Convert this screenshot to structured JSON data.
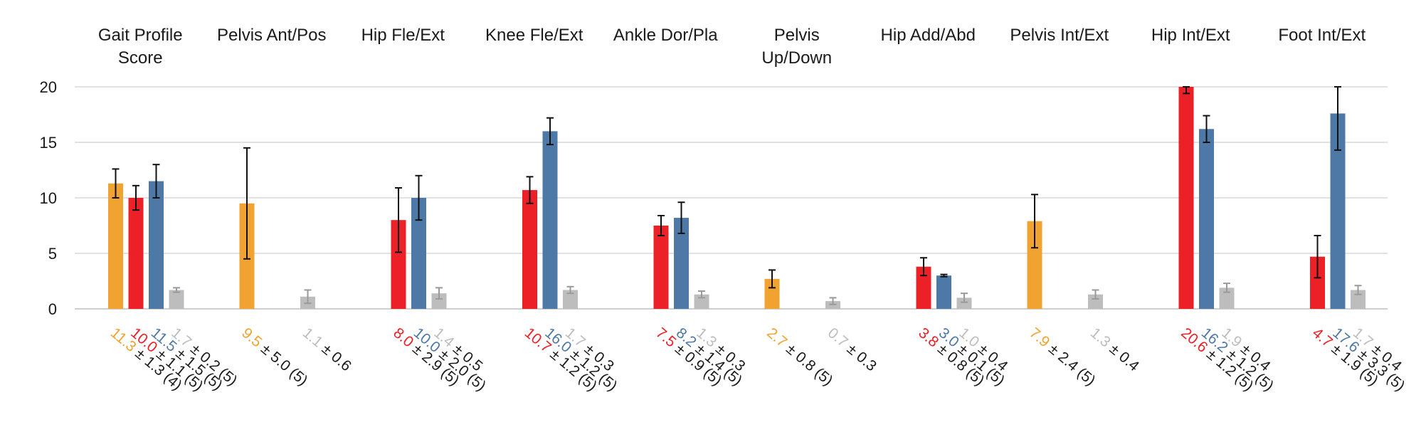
{
  "chart_data": {
    "type": "bar",
    "categories": [
      [
        "Gait Profile",
        "Score"
      ],
      [
        "Pelvis Ant/Pos"
      ],
      [
        "Hip Fle/Ext"
      ],
      [
        "Knee Fle/Ext"
      ],
      [
        "Ankle Dor/Pla"
      ],
      [
        "Pelvis",
        "Up/Down"
      ],
      [
        "Hip Add/Abd"
      ],
      [
        "Pelvis Int/Ext"
      ],
      [
        "Hip Int/Ext"
      ],
      [
        "Foot Int/Ext"
      ]
    ],
    "ylim": [
      0,
      20
    ],
    "yticks": [
      "0",
      "5",
      "10",
      "15",
      "20"
    ],
    "grid": true,
    "series": [
      {
        "color": "#F0A330",
        "values": [
          11.3,
          9.5,
          null,
          null,
          null,
          2.7,
          null,
          7.9,
          null,
          null
        ],
        "errors": [
          1.3,
          5.0,
          null,
          null,
          null,
          0.8,
          null,
          2.4,
          null,
          null
        ],
        "labels": [
          {
            "value": "11.3",
            "error": "± 1.3 (4)"
          },
          {
            "value": "9.5",
            "error": "± 5.0 (5)"
          },
          null,
          null,
          null,
          {
            "value": "2.7",
            "error": "± 0.8 (5)"
          },
          null,
          {
            "value": "7.9",
            "error": "± 2.4 (5)"
          },
          null,
          null
        ]
      },
      {
        "color": "#EC2027",
        "values": [
          10.0,
          null,
          8.0,
          10.7,
          7.5,
          null,
          3.8,
          null,
          20.6,
          4.7
        ],
        "errors": [
          1.1,
          null,
          2.9,
          1.2,
          0.9,
          null,
          0.8,
          null,
          1.2,
          1.9
        ],
        "labels": [
          {
            "value": "10.0",
            "error": "± 1.1 (5)"
          },
          null,
          {
            "value": "8.0",
            "error": "± 2.9 (5)"
          },
          {
            "value": "10.7",
            "error": "± 1.2 (5)"
          },
          {
            "value": "7.5",
            "error": "± 0.9 (5)"
          },
          null,
          {
            "value": "3.8",
            "error": "± 0.8 (5)"
          },
          null,
          {
            "value": "20.6",
            "error": "± 1.2 (5)"
          },
          {
            "value": "4.7",
            "error": "± 1.9 (5)"
          }
        ]
      },
      {
        "color": "#4E78A6",
        "values": [
          11.5,
          null,
          10.0,
          16.0,
          8.2,
          null,
          3.0,
          null,
          16.2,
          17.6
        ],
        "errors": [
          1.5,
          null,
          2.0,
          1.2,
          1.4,
          null,
          0.1,
          null,
          1.2,
          3.3
        ],
        "labels": [
          {
            "value": "11.5",
            "error": "± 1.5 (5)"
          },
          null,
          {
            "value": "10.0",
            "error": "± 2.0 (5)"
          },
          {
            "value": "16.0",
            "error": "± 1.2 (5)"
          },
          {
            "value": "8.2",
            "error": "± 1.4 (5)"
          },
          null,
          {
            "value": "3.0",
            "error": "± 0.1 (5)"
          },
          null,
          {
            "value": "16.2",
            "error": "± 1.2 (5)"
          },
          {
            "value": "17.6",
            "error": "± 3.3 (5)"
          }
        ]
      },
      {
        "color": "#BDBDBD",
        "values": [
          1.7,
          1.1,
          1.4,
          1.7,
          1.3,
          0.7,
          1.0,
          1.3,
          1.9,
          1.7
        ],
        "errors": [
          0.2,
          0.6,
          0.5,
          0.3,
          0.3,
          0.3,
          0.4,
          0.4,
          0.4,
          0.4
        ],
        "labels": [
          {
            "value": "1.7",
            "error": "± 0.2 (5)"
          },
          {
            "value": "1.1",
            "error": "± 0.6"
          },
          {
            "value": "1.4",
            "error": "± 0.5"
          },
          {
            "value": "1.7",
            "error": "± 0.3"
          },
          {
            "value": "1.3",
            "error": "± 0.3"
          },
          {
            "value": "0.7",
            "error": "± 0.3"
          },
          {
            "value": "1.0",
            "error": "± 0.4"
          },
          {
            "value": "1.3",
            "error": "± 0.4"
          },
          {
            "value": "1.9",
            "error": "± 0.4"
          },
          {
            "value": "1.7",
            "error": "± 0.4"
          }
        ]
      }
    ],
    "error_text_color": "#1a1a1a"
  }
}
